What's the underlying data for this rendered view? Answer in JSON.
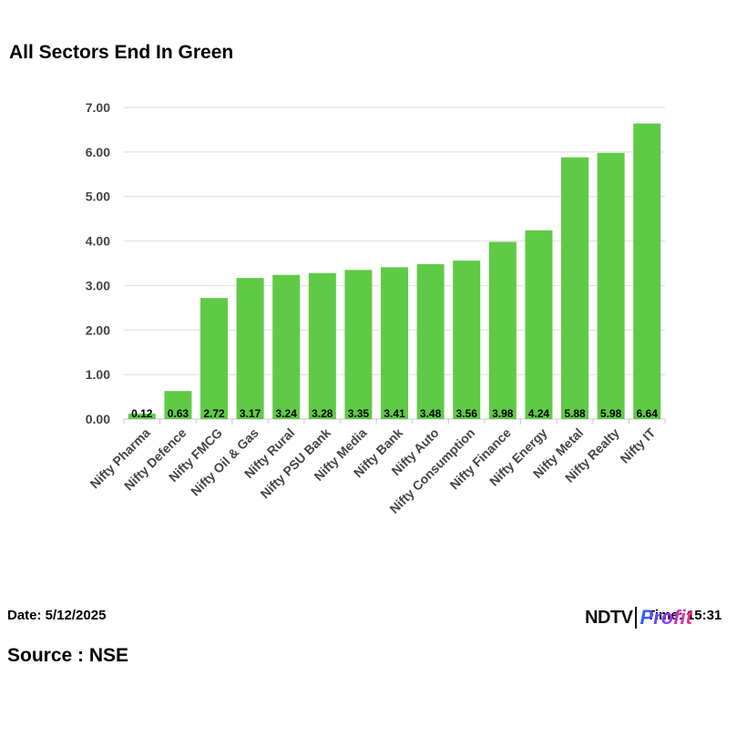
{
  "header": {
    "title": "All Sectors End In Green"
  },
  "footer": {
    "date": "Date: 5/12/2025",
    "time": "Time: 15:31",
    "source": "Source : NSE",
    "logo_primary": "NDTV",
    "logo_secondary": "Profit"
  },
  "colors": {
    "bar": "#5fca46",
    "grid": "#dedede",
    "axis_text": "#444444"
  },
  "chart_data": {
    "type": "bar",
    "title": "All Sectors End In Green",
    "xlabel": "",
    "ylabel": "",
    "ylim": [
      0,
      7
    ],
    "yticks": [
      "0.00",
      "1.00",
      "2.00",
      "3.00",
      "4.00",
      "5.00",
      "6.00",
      "7.00"
    ],
    "grid": true,
    "categories": [
      "Nifty Pharma",
      "Nifty Defence",
      "Nifty FMCG",
      "Nifty Oil & Gas",
      "Nifty Rural",
      "Nifty PSU Bank",
      "Nifty Media",
      "Nifty Bank",
      "Nifty Auto",
      "Nifty Consumption",
      "Nifty Finance",
      "Nifty Energy",
      "Nifty Metal",
      "Nifty Realty",
      "Nifty IT"
    ],
    "values": [
      0.12,
      0.63,
      2.72,
      3.17,
      3.24,
      3.28,
      3.35,
      3.41,
      3.48,
      3.56,
      3.98,
      4.24,
      5.88,
      5.98,
      6.64
    ],
    "data_labels": [
      "0.12",
      "0.63",
      "2.72",
      "3.17",
      "3.24",
      "3.28",
      "3.35",
      "3.41",
      "3.48",
      "3.56",
      "3.98",
      "4.24",
      "5.88",
      "5.98",
      "6.64"
    ]
  }
}
